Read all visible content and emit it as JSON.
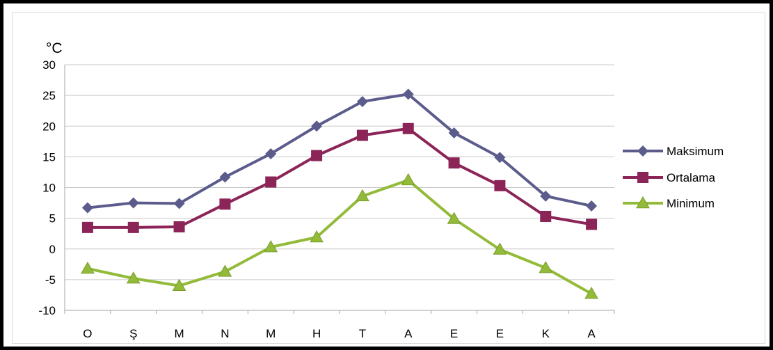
{
  "chart_data": {
    "type": "line",
    "ylabel": "°C",
    "categories": [
      "O",
      "Ş",
      "M",
      "N",
      "M",
      "H",
      "T",
      "A",
      "E",
      "E",
      "K",
      "A"
    ],
    "ylim": [
      -10,
      30
    ],
    "yticks": [
      "30",
      "25",
      "20",
      "15",
      "10",
      "5",
      "0",
      "-5",
      "-10"
    ],
    "grid": true,
    "legend_position": "right",
    "series": [
      {
        "name": "Maksimum",
        "color": "#5b5c8c",
        "marker": "diamond",
        "values": [
          6.7,
          7.5,
          7.4,
          11.7,
          15.5,
          20.0,
          24.0,
          25.2,
          18.9,
          14.9,
          8.6,
          7.0
        ]
      },
      {
        "name": "Ortalama",
        "color": "#8b2457",
        "marker": "square",
        "values": [
          3.5,
          3.5,
          3.6,
          7.3,
          10.9,
          15.2,
          18.5,
          19.6,
          14.0,
          10.3,
          5.3,
          4.0
        ]
      },
      {
        "name": "Minimum",
        "color": "#93bb3a",
        "marker": "triangle",
        "values": [
          -3.2,
          -4.8,
          -6.0,
          -3.7,
          0.3,
          1.9,
          8.6,
          11.2,
          4.9,
          -0.1,
          -3.1,
          -7.3
        ]
      }
    ]
  }
}
